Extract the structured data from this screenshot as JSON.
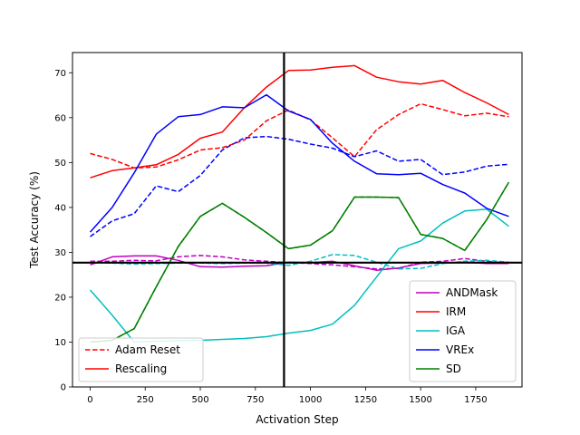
{
  "chart_data": {
    "type": "line",
    "xlabel": "Activation Step",
    "ylabel": "Test Accuracy (%)",
    "xlim": [
      -80,
      1960
    ],
    "ylim": [
      0,
      74.5
    ],
    "xticks": [
      0,
      250,
      500,
      750,
      1000,
      1250,
      1500,
      1750
    ],
    "yticks": [
      0,
      10,
      20,
      30,
      40,
      50,
      60,
      70
    ],
    "x": [
      0,
      100,
      200,
      300,
      400,
      500,
      600,
      700,
      800,
      900,
      1000,
      1100,
      1200,
      1300,
      1400,
      1500,
      1600,
      1700,
      1800,
      1900
    ],
    "vline": 880,
    "hline": 27.7,
    "series": [
      {
        "name": "ANDMask",
        "color": "#bf00bf",
        "style": "solid",
        "values": [
          27.2,
          29.0,
          29.2,
          29.2,
          28.2,
          26.8,
          26.7,
          26.9,
          27.0,
          27.8,
          27.7,
          28.0,
          27.0,
          26.0,
          26.5,
          27.5,
          27.6,
          27.8,
          27.5,
          27.5
        ]
      },
      {
        "name": "ANDMask",
        "color": "#bf00bf",
        "style": "dashed",
        "values": [
          28.0,
          28.0,
          28.2,
          28.1,
          29.0,
          29.3,
          29.0,
          28.3,
          28.0,
          27.7,
          27.5,
          27.2,
          26.8,
          26.3,
          26.4,
          27.8,
          28.0,
          28.6,
          28.0,
          27.6
        ]
      },
      {
        "name": "IRM",
        "color": "#ff0000",
        "style": "solid",
        "values": [
          46.6,
          48.2,
          48.8,
          49.5,
          51.8,
          55.4,
          56.8,
          62.2,
          66.8,
          70.5,
          70.6,
          71.2,
          71.6,
          69.0,
          68.0,
          67.5,
          68.3,
          65.6,
          63.3,
          60.7
        ]
      },
      {
        "name": "IRM",
        "color": "#ff0000",
        "style": "dashed",
        "values": [
          52.0,
          50.7,
          48.8,
          49.0,
          50.6,
          52.8,
          53.3,
          55.0,
          59.3,
          61.7,
          59.5,
          55.5,
          51.3,
          57.3,
          60.7,
          63.1,
          61.8,
          60.4,
          61.0,
          60.2
        ]
      },
      {
        "name": "IGA",
        "color": "#00bfbf",
        "style": "solid",
        "values": [
          21.6,
          16.0,
          10.0,
          10.2,
          10.3,
          10.4,
          10.6,
          10.8,
          11.2,
          12.0,
          12.6,
          14.0,
          18.2,
          24.5,
          30.8,
          32.5,
          36.5,
          39.2,
          39.6,
          35.8
        ]
      },
      {
        "name": "IGA",
        "color": "#00bfbf",
        "style": "dashed",
        "values": [
          27.8,
          27.6,
          27.4,
          27.5,
          27.6,
          27.6,
          27.5,
          27.6,
          27.6,
          27.1,
          28.0,
          29.5,
          29.3,
          27.8,
          26.3,
          26.4,
          27.5,
          28.0,
          28.2,
          27.8
        ]
      },
      {
        "name": "VREx",
        "color": "#0000ff",
        "style": "solid",
        "values": [
          34.5,
          40.0,
          47.7,
          56.3,
          60.2,
          60.7,
          62.4,
          62.2,
          65.1,
          61.5,
          59.6,
          54.3,
          50.3,
          47.5,
          47.3,
          47.6,
          45.1,
          43.2,
          39.8,
          38.0
        ]
      },
      {
        "name": "VREx",
        "color": "#0000ff",
        "style": "dashed",
        "values": [
          33.5,
          37.0,
          38.6,
          44.8,
          43.5,
          47.1,
          52.8,
          55.5,
          55.8,
          55.2,
          54.1,
          53.2,
          51.3,
          52.6,
          50.3,
          50.7,
          47.3,
          47.9,
          49.2,
          49.6
        ]
      },
      {
        "name": "SD",
        "color": "#008000",
        "style": "solid",
        "values": [
          10.0,
          10.4,
          13.0,
          22.3,
          31.3,
          38.0,
          40.9,
          37.8,
          34.4,
          30.8,
          31.6,
          34.8,
          42.3,
          42.3,
          42.2,
          34.0,
          33.1,
          30.4,
          37.3,
          45.6
        ]
      },
      {
        "name": "SD",
        "color": "#008000",
        "style": "dashed",
        "values": [
          10.0,
          10.4,
          13.0,
          22.3,
          31.3,
          38.0,
          40.9,
          37.8,
          34.4,
          30.8,
          31.6,
          34.8,
          42.3,
          42.3,
          42.2,
          34.0,
          33.1,
          30.4,
          37.3,
          45.6
        ]
      }
    ],
    "legend_left": {
      "placement": "lower-left",
      "entries": [
        {
          "label": "Adam Reset",
          "color": "#ff0000",
          "style": "dashed"
        },
        {
          "label": "Rescaling",
          "color": "#ff0000",
          "style": "solid"
        }
      ]
    },
    "legend_right": {
      "placement": "lower-right",
      "entries": [
        {
          "label": "ANDMask",
          "color": "#bf00bf",
          "style": "solid"
        },
        {
          "label": "IRM",
          "color": "#ff0000",
          "style": "solid"
        },
        {
          "label": "IGA",
          "color": "#00bfbf",
          "style": "solid"
        },
        {
          "label": "VREx",
          "color": "#0000ff",
          "style": "solid"
        },
        {
          "label": "SD",
          "color": "#008000",
          "style": "solid"
        }
      ]
    }
  }
}
